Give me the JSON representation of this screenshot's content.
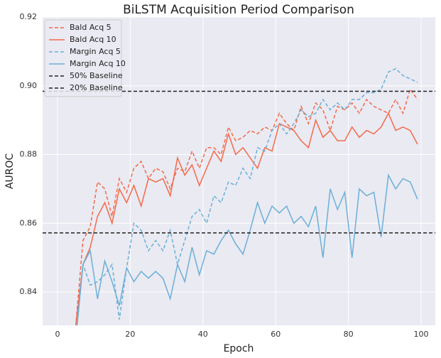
{
  "chart_data": {
    "type": "line",
    "title": "BiLSTM Acquisition Period Comparison",
    "x_label": "Epoch",
    "y_label": "AUROC",
    "x": [
      5,
      7,
      9,
      11,
      13,
      15,
      17,
      19,
      21,
      23,
      25,
      27,
      29,
      31,
      33,
      35,
      37,
      39,
      41,
      43,
      45,
      47,
      49,
      51,
      53,
      55,
      57,
      59,
      61,
      63,
      65,
      67,
      69,
      71,
      73,
      75,
      77,
      79,
      81,
      83,
      85,
      87,
      89,
      91,
      93,
      95,
      97,
      99
    ],
    "series": [
      {
        "name": "Bald Acq 5",
        "color": "#f4694a",
        "dashed": true,
        "values": [
          0.83,
          0.855,
          0.859,
          0.872,
          0.87,
          0.862,
          0.873,
          0.869,
          0.876,
          0.878,
          0.873,
          0.876,
          0.875,
          0.87,
          0.876,
          0.875,
          0.881,
          0.876,
          0.882,
          0.882,
          0.88,
          0.888,
          0.884,
          0.885,
          0.887,
          0.886,
          0.888,
          0.887,
          0.892,
          0.889,
          0.887,
          0.894,
          0.889,
          0.895,
          0.893,
          0.887,
          0.894,
          0.893,
          0.895,
          0.892,
          0.896,
          0.894,
          0.893,
          0.892,
          0.896,
          0.892,
          0.899,
          0.896
        ]
      },
      {
        "name": "Bald Acq 10",
        "color": "#f4694a",
        "dashed": false,
        "values": [
          0.83,
          0.848,
          0.853,
          0.862,
          0.866,
          0.86,
          0.87,
          0.866,
          0.871,
          0.865,
          0.873,
          0.872,
          0.873,
          0.868,
          0.879,
          0.874,
          0.877,
          0.871,
          0.876,
          0.881,
          0.878,
          0.886,
          0.88,
          0.882,
          0.879,
          0.876,
          0.882,
          0.881,
          0.889,
          0.888,
          0.887,
          0.884,
          0.882,
          0.89,
          0.885,
          0.887,
          0.884,
          0.884,
          0.888,
          0.885,
          0.887,
          0.886,
          0.888,
          0.892,
          0.887,
          0.888,
          0.887,
          0.883
        ]
      },
      {
        "name": "Margin Acq 5",
        "color": "#6aafd8",
        "dashed": true,
        "values": [
          0.826,
          0.848,
          0.842,
          0.843,
          0.845,
          0.848,
          0.832,
          0.847,
          0.86,
          0.858,
          0.852,
          0.855,
          0.852,
          0.858,
          0.848,
          0.855,
          0.862,
          0.864,
          0.86,
          0.868,
          0.866,
          0.872,
          0.871,
          0.876,
          0.873,
          0.882,
          0.881,
          0.887,
          0.889,
          0.886,
          0.889,
          0.893,
          0.891,
          0.892,
          0.896,
          0.893,
          0.895,
          0.893,
          0.896,
          0.896,
          0.898,
          0.898,
          0.899,
          0.904,
          0.905,
          0.903,
          0.902,
          0.901
        ]
      },
      {
        "name": "Margin Acq 10",
        "color": "#6aafd8",
        "dashed": false,
        "values": [
          0.826,
          0.848,
          0.852,
          0.838,
          0.849,
          0.843,
          0.836,
          0.847,
          0.843,
          0.846,
          0.844,
          0.846,
          0.844,
          0.838,
          0.848,
          0.843,
          0.853,
          0.845,
          0.852,
          0.851,
          0.855,
          0.858,
          0.854,
          0.851,
          0.858,
          0.866,
          0.86,
          0.865,
          0.863,
          0.865,
          0.86,
          0.862,
          0.859,
          0.865,
          0.85,
          0.87,
          0.864,
          0.869,
          0.85,
          0.87,
          0.868,
          0.869,
          0.856,
          0.874,
          0.87,
          0.873,
          0.872,
          0.867
        ]
      }
    ],
    "baselines": [
      {
        "name": "50% Baseline",
        "color": "#222222",
        "value": 0.8984
      },
      {
        "name": "20% Baseline",
        "color": "#222222",
        "value": 0.8572
      }
    ],
    "xlim": [
      -4.1,
      103.9
    ],
    "ylim": [
      0.8303,
      0.92
    ],
    "xticks": [
      0,
      20,
      40,
      60,
      80,
      100
    ],
    "yticks": [
      0.84,
      0.86,
      0.88,
      {
        "value": 0.9,
        "label": "0.90"
      },
      0.92
    ],
    "grid": true,
    "legend": "upper-left"
  }
}
